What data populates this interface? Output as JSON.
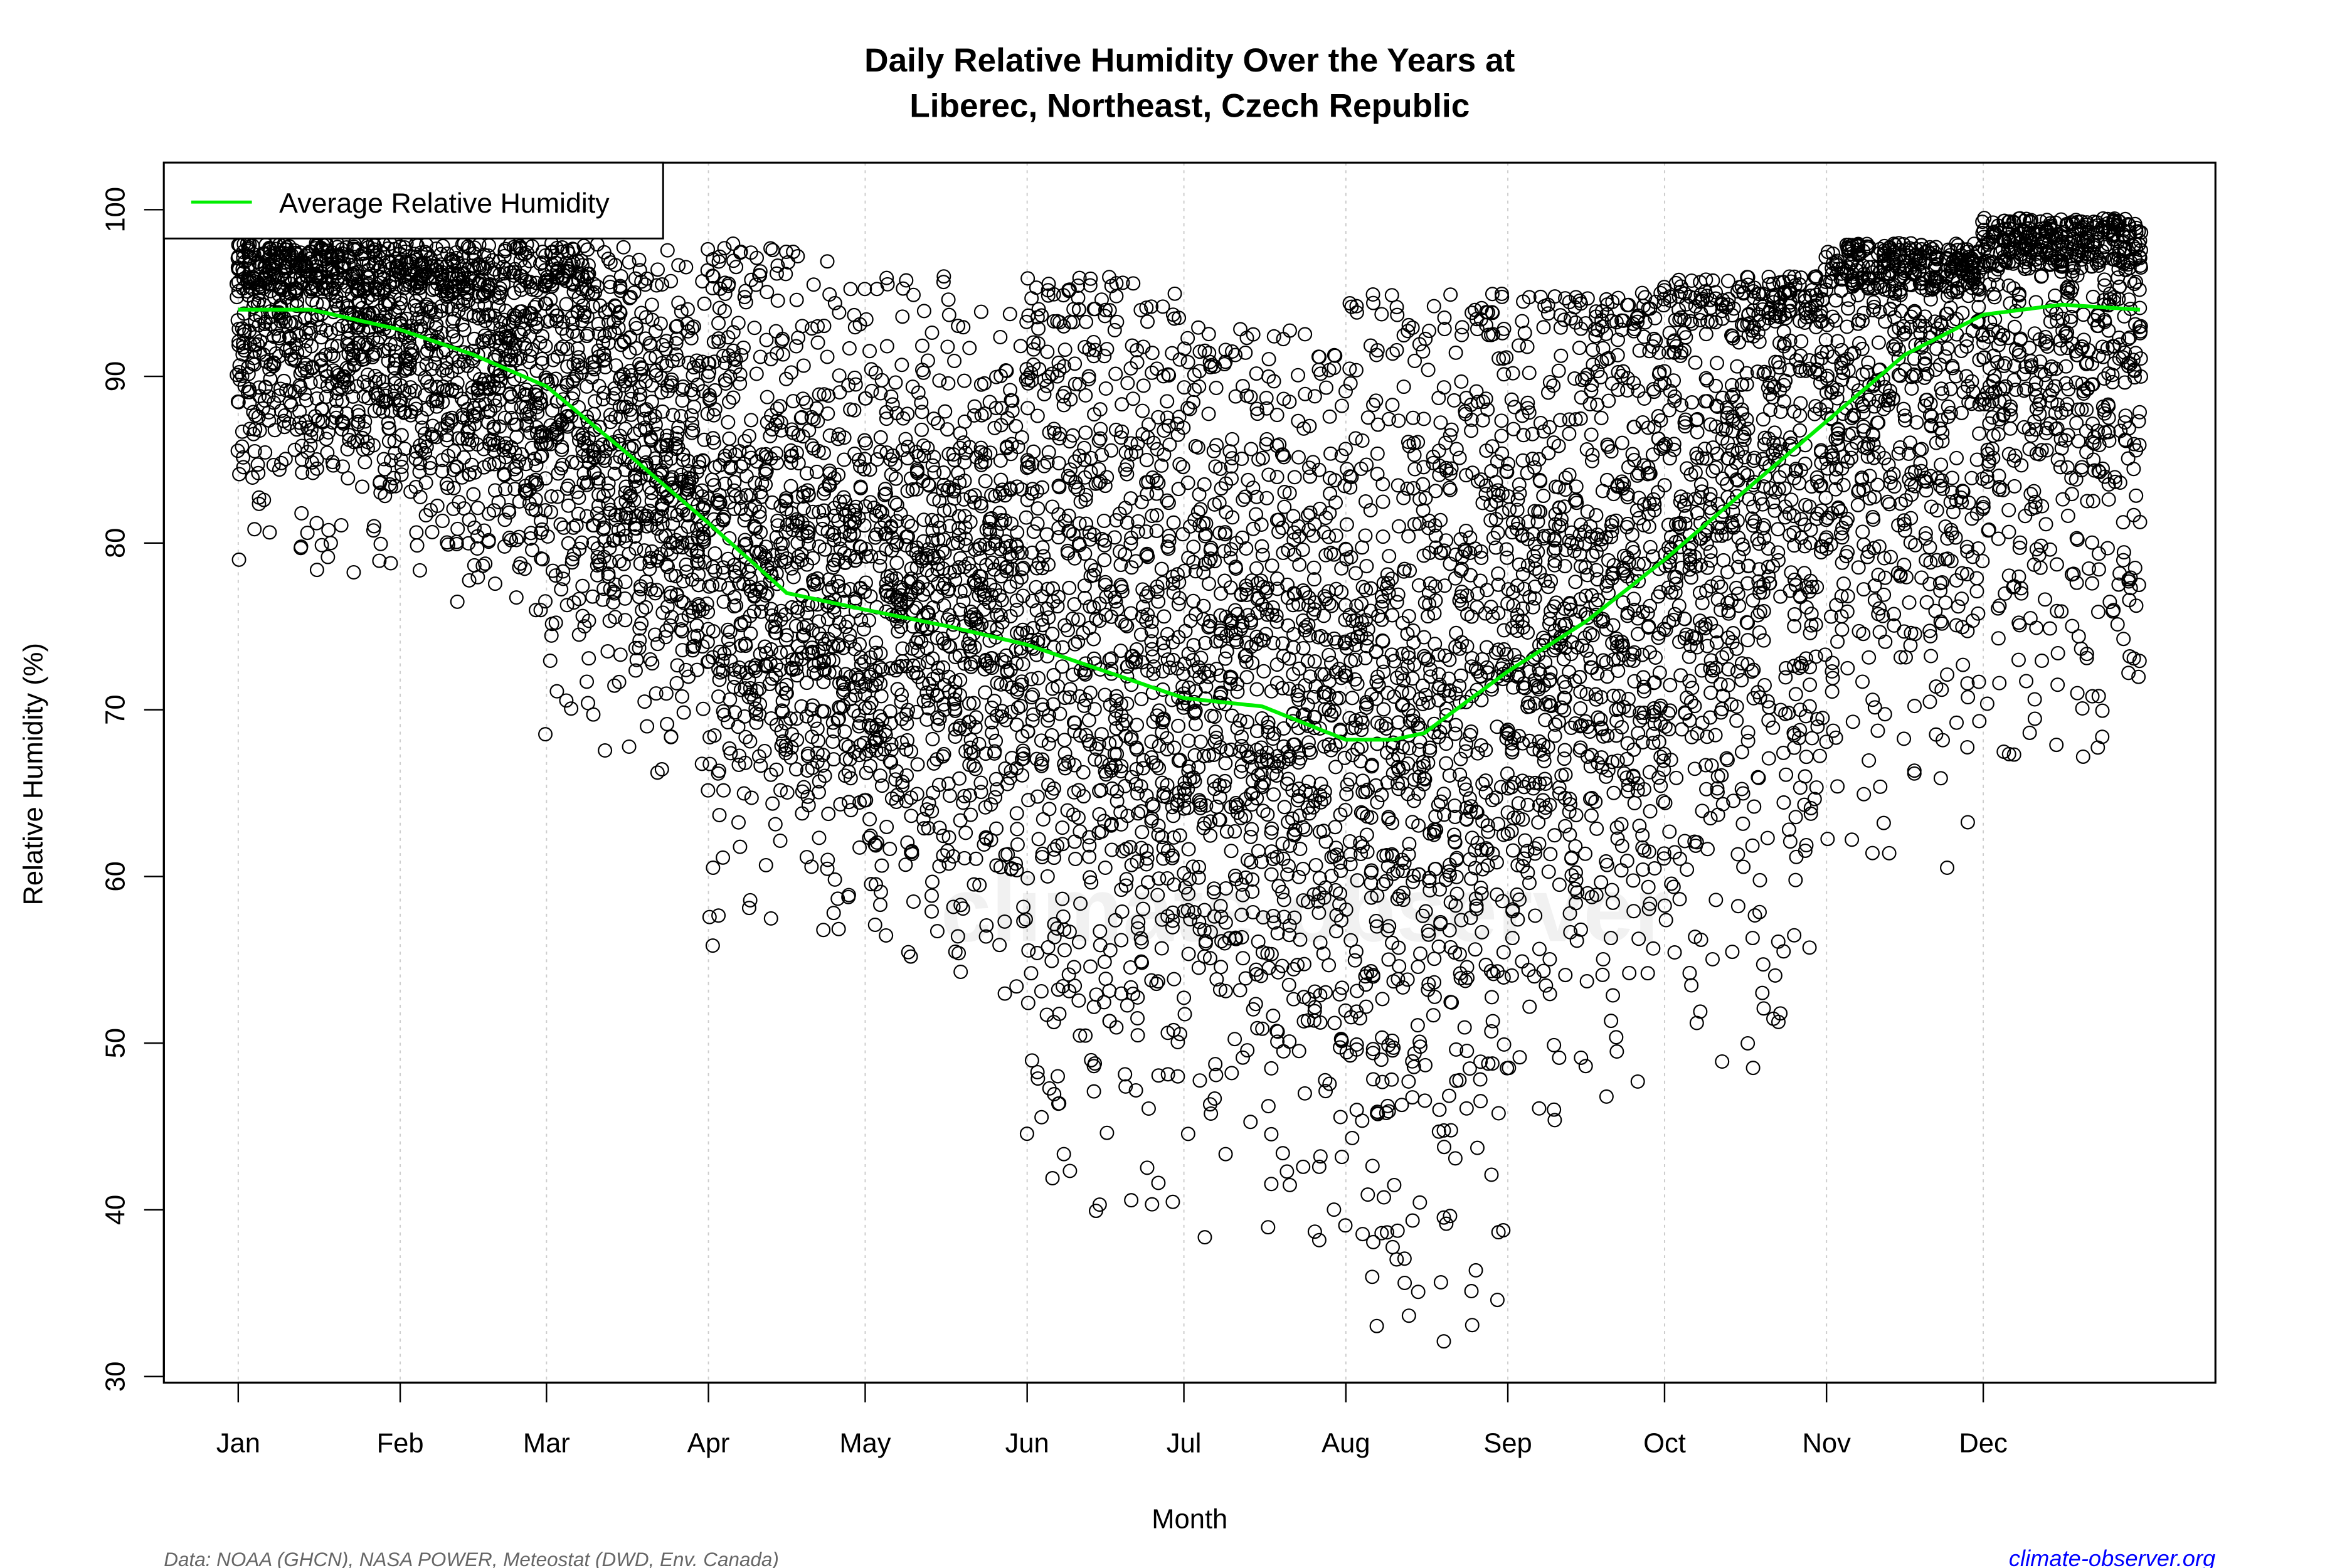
{
  "chart_data": {
    "type": "scatter",
    "title": "Daily Relative Humidity Over the Years at",
    "subtitle": "Liberec, Northeast, Czech Republic",
    "xlabel": "Month",
    "ylabel": "Relative Humidity  (%)",
    "ylim": [
      30,
      100
    ],
    "yticks": [
      30,
      40,
      50,
      60,
      70,
      80,
      90,
      100
    ],
    "xticks": [
      {
        "label": "Jan",
        "day": 1
      },
      {
        "label": "Feb",
        "day": 32
      },
      {
        "label": "Mar",
        "day": 60
      },
      {
        "label": "Apr",
        "day": 91
      },
      {
        "label": "May",
        "day": 121
      },
      {
        "label": "Jun",
        "day": 152
      },
      {
        "label": "Jul",
        "day": 182
      },
      {
        "label": "Aug",
        "day": 213
      },
      {
        "label": "Sep",
        "day": 244
      },
      {
        "label": "Oct",
        "day": 274
      },
      {
        "label": "Nov",
        "day": 305
      },
      {
        "label": "Dec",
        "day": 335
      }
    ],
    "xlim_days": [
      1,
      365
    ],
    "grid": "vertical dotted at month starts",
    "legend": {
      "placement": "top-left",
      "entries": [
        {
          "label": "Average Relative Humidity",
          "color": "#00ee00"
        }
      ]
    },
    "average_curve": {
      "name": "Average Relative Humidity",
      "color": "#00ee00",
      "points": [
        {
          "day": 1,
          "rh": 94.0
        },
        {
          "day": 15,
          "rh": 94.0
        },
        {
          "day": 32,
          "rh": 92.8
        },
        {
          "day": 46,
          "rh": 91.3
        },
        {
          "day": 60,
          "rh": 89.4
        },
        {
          "day": 75,
          "rh": 85.5
        },
        {
          "day": 91,
          "rh": 81.2
        },
        {
          "day": 106,
          "rh": 77.0
        },
        {
          "day": 121,
          "rh": 76.0
        },
        {
          "day": 137,
          "rh": 75.0
        },
        {
          "day": 152,
          "rh": 73.9
        },
        {
          "day": 167,
          "rh": 72.3
        },
        {
          "day": 182,
          "rh": 70.7
        },
        {
          "day": 197,
          "rh": 70.2
        },
        {
          "day": 213,
          "rh": 68.2
        },
        {
          "day": 222,
          "rh": 68.2
        },
        {
          "day": 228,
          "rh": 68.6
        },
        {
          "day": 244,
          "rh": 72.3
        },
        {
          "day": 259,
          "rh": 75.3
        },
        {
          "day": 274,
          "rh": 79.0
        },
        {
          "day": 290,
          "rh": 83.3
        },
        {
          "day": 305,
          "rh": 87.3
        },
        {
          "day": 320,
          "rh": 91.3
        },
        {
          "day": 335,
          "rh": 93.7
        },
        {
          "day": 350,
          "rh": 94.3
        },
        {
          "day": 365,
          "rh": 94.0
        }
      ]
    },
    "daily_points_range_by_month": [
      {
        "month": "Jan",
        "min": 78,
        "max": 98
      },
      {
        "month": "Feb",
        "min": 75,
        "max": 98
      },
      {
        "month": "Mar",
        "min": 66,
        "max": 98
      },
      {
        "month": "Apr",
        "min": 55,
        "max": 98
      },
      {
        "month": "May",
        "min": 52,
        "max": 96
      },
      {
        "month": "Jun",
        "min": 39,
        "max": 96
      },
      {
        "month": "Jul",
        "min": 38,
        "max": 93
      },
      {
        "month": "Aug",
        "min": 32,
        "max": 95
      },
      {
        "month": "Sep",
        "min": 44,
        "max": 95
      },
      {
        "month": "Oct",
        "min": 48,
        "max": 96
      },
      {
        "month": "Nov",
        "min": 60,
        "max": 98
      },
      {
        "month": "Dec",
        "min": 67,
        "max": 99.5
      }
    ],
    "point_marker": "open circle",
    "point_color": "#000000"
  },
  "footer": {
    "source": "Data: NOAA (GHCN), NASA POWER, Meteostat (DWD, Env. Canada)",
    "site": "climate-observer.org",
    "site_color": "#0000ff"
  },
  "watermark": "climate-observer"
}
